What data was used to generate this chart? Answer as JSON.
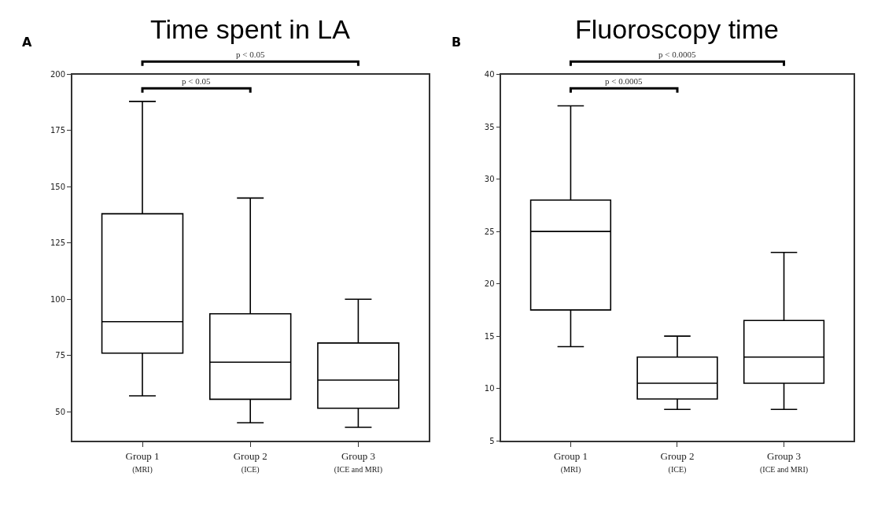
{
  "chart_data": [
    {
      "type": "box",
      "title": "Time spent in LA",
      "annotations": [
        "A",
        "p < 0.05",
        "p < 0.05"
      ],
      "categories": [
        "Group 1\n(MRI)",
        "Group 2\n(ICE)",
        "Group 3\n(ICE and MRI)"
      ],
      "boxes": [
        {
          "low": 57,
          "q1": 76,
          "median": 90,
          "q3": 138,
          "high": 188
        },
        {
          "low": 45,
          "q1": 55.5,
          "median": 72,
          "q3": 93.5,
          "high": 145
        },
        {
          "low": 43,
          "q1": 51.5,
          "median": 64,
          "q3": 80.5,
          "high": 100
        }
      ],
      "color": "#000000",
      "ylim": [
        37,
        200
      ],
      "yticks": [
        50,
        75,
        100,
        125,
        150,
        175,
        200
      ]
    },
    {
      "type": "box",
      "title": "Fluoroscopy time",
      "annotations": [
        "B",
        "p < 0.0005",
        "p < 0.0005"
      ],
      "categories": [
        "Group 1\n(MRI)",
        "Group 2\n(ICE)",
        "Group 3\n(ICE and MRI)"
      ],
      "boxes": [
        {
          "low": 14,
          "q1": 17.5,
          "median": 25,
          "q3": 28,
          "high": 37
        },
        {
          "low": 8,
          "q1": 9,
          "median": 10.5,
          "q3": 13,
          "high": 15
        },
        {
          "low": 8,
          "q1": 10.5,
          "median": 13,
          "q3": 16.5,
          "high": 23
        }
      ],
      "color": "#000000",
      "ylim": [
        5,
        40
      ],
      "yticks": [
        5,
        10,
        15,
        20,
        25,
        30,
        35,
        40
      ]
    }
  ]
}
